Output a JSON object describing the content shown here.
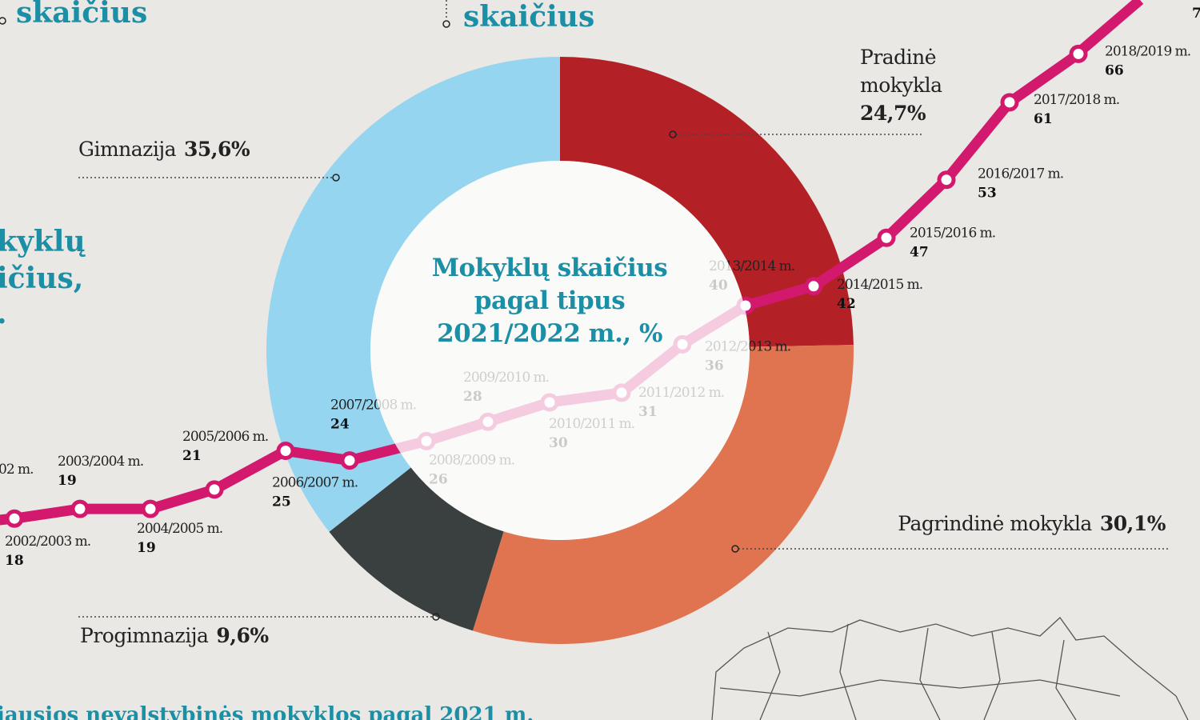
{
  "chart_data": [
    {
      "type": "pie",
      "title": "Mokyklų skaičius pagal tipus 2021/2022 m., %",
      "categories": [
        "Pradinė mokykla",
        "Pagrindinė mokykla",
        "Progimnazija",
        "Gimnazija"
      ],
      "values": [
        24.7,
        30.1,
        9.6,
        35.6
      ],
      "value_labels": [
        "24,7%",
        "30,1%",
        "9,6%",
        "35,6%"
      ],
      "colors": [
        "#b32026",
        "#e07451",
        "#3a3f3f",
        "#95d5f0"
      ]
    },
    {
      "type": "line",
      "categories": [
        "2002/2003 m.",
        "2003/2004 m.",
        "2004/2005 m.",
        "2005/2006 m.",
        "2006/2007 m.",
        "2007/2008 m.",
        "2008/2009 m.",
        "2009/2010 m.",
        "2010/2011 m.",
        "2011/2012 m.",
        "2012/2013 m.",
        "2013/2014 m.",
        "2014/2015 m.",
        "2015/2016 m.",
        "2016/2017 m.",
        "2017/2018 m.",
        "2018/2019 m."
      ],
      "series": [
        {
          "color": "#d2196e",
          "values": [
            18,
            19,
            19,
            21,
            25,
            24,
            26,
            28,
            30,
            31,
            36,
            40,
            42,
            47,
            53,
            61,
            66
          ]
        }
      ]
    }
  ],
  "fragments": {
    "heading_left": "skaičius",
    "heading_center": "skaičius",
    "side_1": "kyklų",
    "side_2": "ičius,",
    "side_3": ".",
    "partial_year": "02 m.",
    "partial_value": "7",
    "bottom": "iausios nevalstybinės mokyklos pagal 2021 m."
  }
}
